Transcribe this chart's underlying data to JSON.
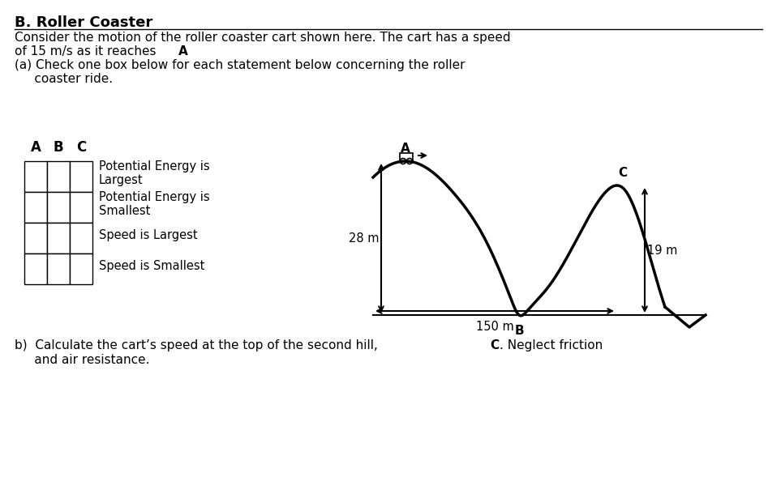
{
  "title": "B. Roller Coaster",
  "line1": "Consider the motion of the roller coaster cart shown here. The cart has a speed",
  "line2": "of 15 m/s as it reaches  A.",
  "line3": "(a) Check one box below for each statement below concerning the roller",
  "line4": "     coaster ride.",
  "table_headers": [
    "A",
    "B",
    "C"
  ],
  "table_rows": [
    "Potential Energy is\nLargest",
    "Potential Energy is\nSmallest",
    "Speed is Largest",
    "Speed is Smallest"
  ],
  "part_b": "b)  Calculate the cart’s speed at the top of the second hill, C. Neglect friction\n     and air resistance.",
  "height_A": "28 m",
  "height_C": "19 m",
  "dist_150": "150 m",
  "label_A": "A",
  "label_B": "B",
  "label_C": "C",
  "bg_color": "#ffffff",
  "text_color": "#000000",
  "line_color": "#000000"
}
